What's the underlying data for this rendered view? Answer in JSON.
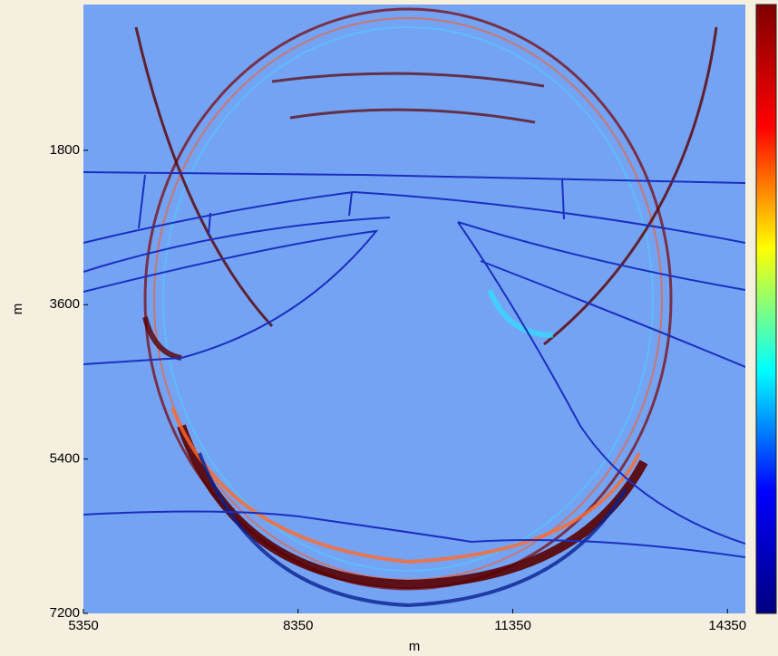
{
  "chart_data": {
    "type": "heatmap",
    "xlabel": "m",
    "ylabel": "m",
    "xlim": [
      5350,
      14600
    ],
    "xticks": [
      5350,
      8350,
      11350,
      14350
    ],
    "ylim": [
      100,
      7200
    ],
    "yticks": [
      1800,
      3600,
      5400,
      7200
    ],
    "y_reversed": true,
    "colormap": [
      "#800000",
      "#ff0000",
      "#ffff00",
      "#00ffff",
      "#0000ff",
      "#000080"
    ],
    "background": "#74a3f4"
  }
}
